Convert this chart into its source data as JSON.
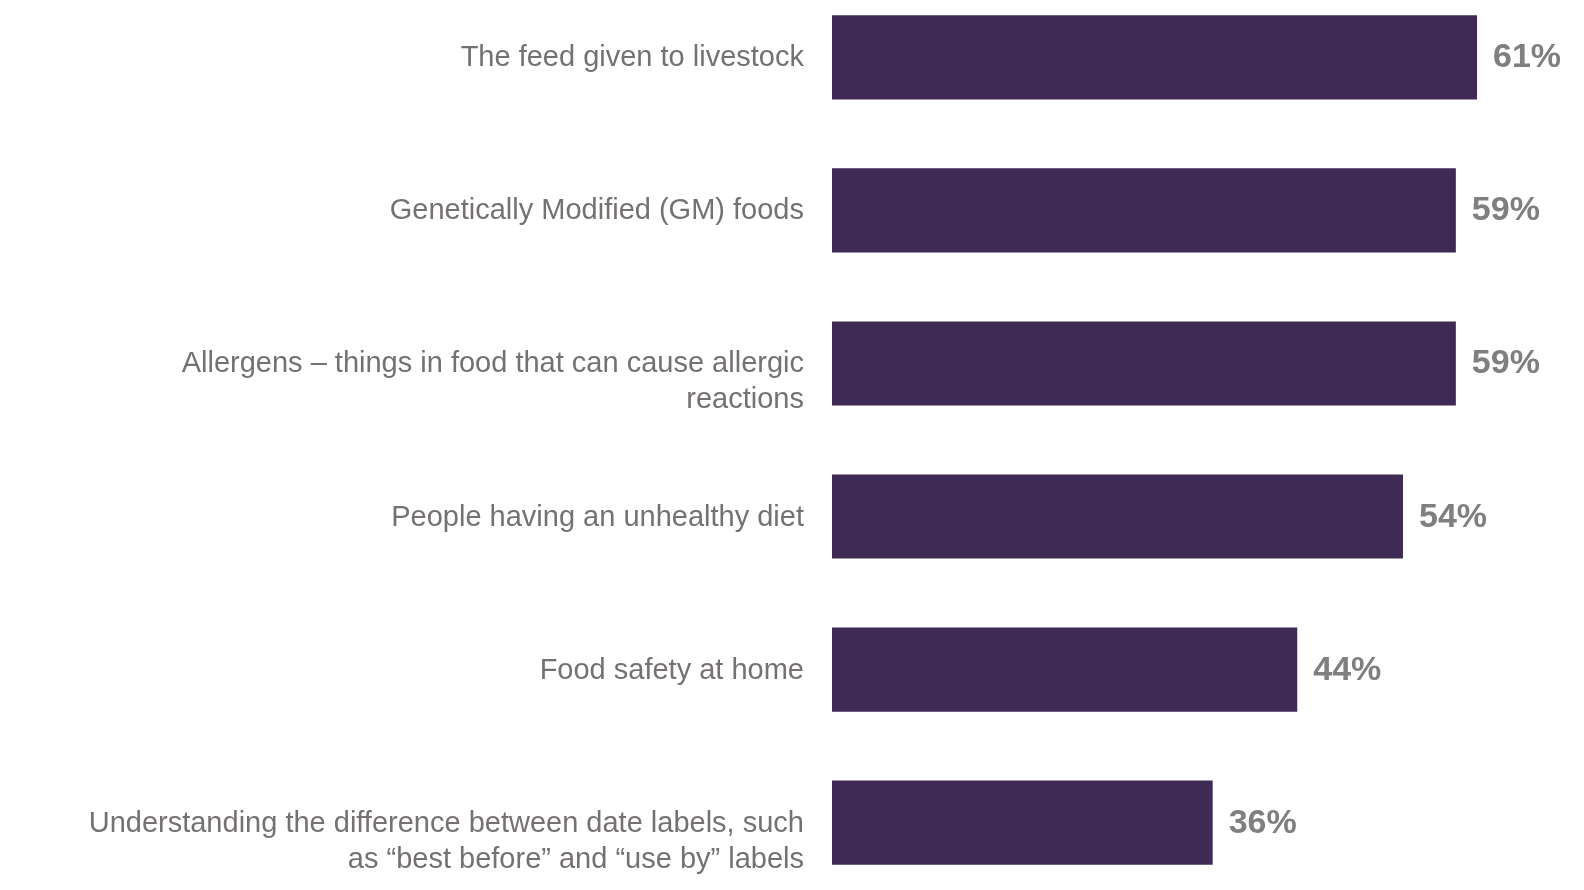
{
  "chart_data": {
    "type": "bar",
    "orientation": "horizontal",
    "categories": [
      "The feed given to livestock",
      "Genetically Modified (GM) foods",
      "Allergens – things in food that can cause allergic reactions",
      "People having an unhealthy diet",
      "Food safety at home",
      "Understanding the difference between date labels, such as “best before” and “use by” labels"
    ],
    "values": [
      61,
      59,
      59,
      54,
      44,
      36
    ],
    "value_labels": [
      "61%",
      "59%",
      "59%",
      "54%",
      "44%",
      "36%"
    ],
    "color": "#3f2a56"
  }
}
